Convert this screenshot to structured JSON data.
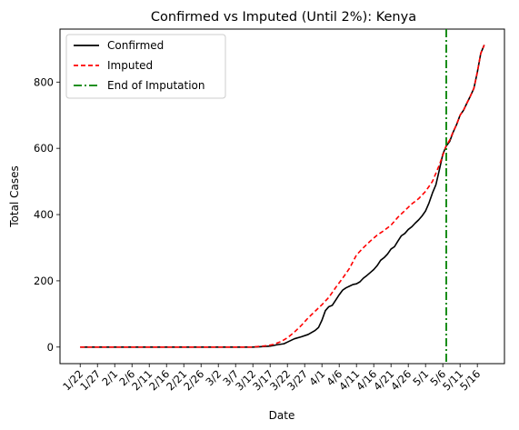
{
  "chart_data": {
    "type": "line",
    "title": "Confirmed vs Imputed (Until 2%): Kenya",
    "xlabel": "Date",
    "ylabel": "Total Cases",
    "x_tick_labels": [
      "1/22",
      "1/27",
      "2/1",
      "2/6",
      "2/11",
      "2/16",
      "2/21",
      "2/26",
      "3/2",
      "3/7",
      "3/12",
      "3/17",
      "3/22",
      "3/27",
      "4/1",
      "4/6",
      "4/11",
      "4/16",
      "4/21",
      "4/26",
      "5/1",
      "5/6",
      "5/11",
      "5/16"
    ],
    "x_start": "1/22",
    "ylim": [
      -50,
      960
    ],
    "y_ticks": [
      0,
      200,
      400,
      600,
      800
    ],
    "legend_position": "upper-left",
    "vertical_line": {
      "name": "End of Imputation",
      "x": "5/7",
      "color": "#008000"
    },
    "series": [
      {
        "name": "Confirmed",
        "color": "#000000",
        "dash": "solid",
        "points": [
          [
            "1/22",
            0
          ],
          [
            "3/12",
            0
          ],
          [
            "3/14",
            1
          ],
          [
            "3/17",
            3
          ],
          [
            "3/19",
            7
          ],
          [
            "3/21",
            10
          ],
          [
            "3/22",
            15
          ],
          [
            "3/24",
            25
          ],
          [
            "3/26",
            31
          ],
          [
            "3/28",
            38
          ],
          [
            "3/30",
            50
          ],
          [
            "3/31",
            59
          ],
          [
            "4/1",
            81
          ],
          [
            "4/2",
            110
          ],
          [
            "4/3",
            122
          ],
          [
            "4/4",
            126
          ],
          [
            "4/5",
            142
          ],
          [
            "4/6",
            158
          ],
          [
            "4/7",
            172
          ],
          [
            "4/8",
            179
          ],
          [
            "4/9",
            184
          ],
          [
            "4/10",
            189
          ],
          [
            "4/11",
            191
          ],
          [
            "4/12",
            197
          ],
          [
            "4/13",
            208
          ],
          [
            "4/14",
            216
          ],
          [
            "4/15",
            225
          ],
          [
            "4/16",
            234
          ],
          [
            "4/17",
            246
          ],
          [
            "4/18",
            262
          ],
          [
            "4/19",
            270
          ],
          [
            "4/20",
            281
          ],
          [
            "4/21",
            296
          ],
          [
            "4/22",
            303
          ],
          [
            "4/23",
            320
          ],
          [
            "4/24",
            336
          ],
          [
            "4/25",
            343
          ],
          [
            "4/26",
            355
          ],
          [
            "4/27",
            363
          ],
          [
            "4/28",
            374
          ],
          [
            "4/29",
            384
          ],
          [
            "4/30",
            396
          ],
          [
            "5/1",
            411
          ],
          [
            "5/2",
            435
          ],
          [
            "5/3",
            465
          ],
          [
            "5/4",
            490
          ],
          [
            "5/5",
            535
          ],
          [
            "5/6",
            582
          ],
          [
            "5/7",
            607
          ],
          [
            "5/8",
            621
          ],
          [
            "5/9",
            649
          ],
          [
            "5/10",
            672
          ],
          [
            "5/11",
            700
          ],
          [
            "5/12",
            715
          ],
          [
            "5/13",
            737
          ],
          [
            "5/14",
            758
          ],
          [
            "5/15",
            781
          ],
          [
            "5/16",
            830
          ],
          [
            "5/17",
            887
          ],
          [
            "5/18",
            912
          ]
        ]
      },
      {
        "name": "Imputed",
        "color": "#ff0000",
        "dash": "dashed",
        "points": [
          [
            "1/22",
            0
          ],
          [
            "3/12",
            0
          ],
          [
            "3/14",
            2
          ],
          [
            "3/16",
            4
          ],
          [
            "3/18",
            8
          ],
          [
            "3/20",
            16
          ],
          [
            "3/22",
            28
          ],
          [
            "3/24",
            45
          ],
          [
            "3/26",
            65
          ],
          [
            "3/28",
            88
          ],
          [
            "3/30",
            108
          ],
          [
            "4/1",
            128
          ],
          [
            "4/3",
            150
          ],
          [
            "4/5",
            180
          ],
          [
            "4/7",
            208
          ],
          [
            "4/9",
            238
          ],
          [
            "4/11",
            278
          ],
          [
            "4/13",
            300
          ],
          [
            "4/15",
            320
          ],
          [
            "4/17",
            338
          ],
          [
            "4/19",
            352
          ],
          [
            "4/21",
            368
          ],
          [
            "4/23",
            392
          ],
          [
            "4/25",
            412
          ],
          [
            "4/27",
            432
          ],
          [
            "4/29",
            448
          ],
          [
            "5/1",
            470
          ],
          [
            "5/3",
            500
          ],
          [
            "5/5",
            550
          ],
          [
            "5/7",
            608
          ],
          [
            "5/8",
            625
          ],
          [
            "5/9",
            650
          ],
          [
            "5/10",
            672
          ],
          [
            "5/11",
            700
          ],
          [
            "5/12",
            715
          ],
          [
            "5/13",
            737
          ],
          [
            "5/14",
            758
          ],
          [
            "5/15",
            781
          ],
          [
            "5/16",
            830
          ],
          [
            "5/17",
            887
          ],
          [
            "5/18",
            912
          ]
        ]
      },
      {
        "name": "End of Imputation",
        "color": "#008000",
        "dash": "dashdot",
        "points": []
      }
    ]
  }
}
